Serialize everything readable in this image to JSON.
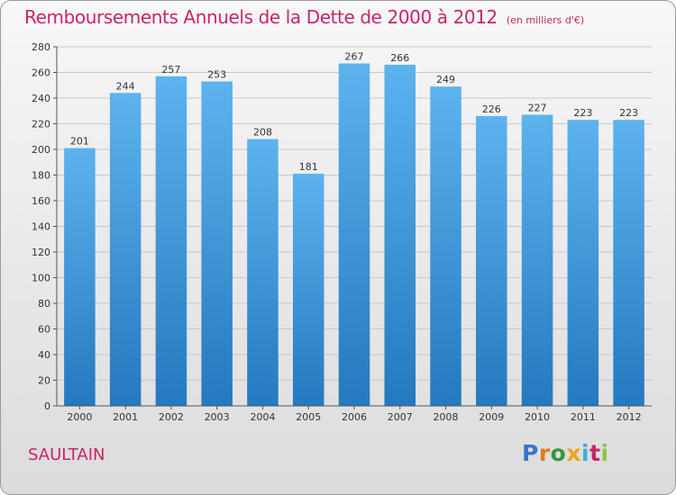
{
  "header": {
    "title": "Remboursements Annuels de la Dette de 2000 à 2012",
    "unit": "(en milliers d'€)"
  },
  "footer": {
    "city": "SAULTAIN",
    "logo": "Proxiti"
  },
  "colors": {
    "title": "#c8246b",
    "bar_top": "#5db3ee",
    "bar_bottom": "#2479bf",
    "grid": "#c9c9c9"
  },
  "chart_data": {
    "type": "bar",
    "title": "Remboursements Annuels de la Dette de 2000 à 2012",
    "categories": [
      "2000",
      "2001",
      "2002",
      "2003",
      "2004",
      "2005",
      "2006",
      "2007",
      "2008",
      "2009",
      "2010",
      "2011",
      "2012"
    ],
    "values": [
      201,
      244,
      257,
      253,
      208,
      181,
      267,
      266,
      249,
      226,
      227,
      223,
      223
    ],
    "ylim": [
      0,
      280
    ],
    "yticks": [
      0,
      20,
      40,
      60,
      80,
      100,
      120,
      140,
      160,
      180,
      200,
      220,
      240,
      260,
      280
    ],
    "xlabel": "",
    "ylabel": "",
    "grid": true
  }
}
